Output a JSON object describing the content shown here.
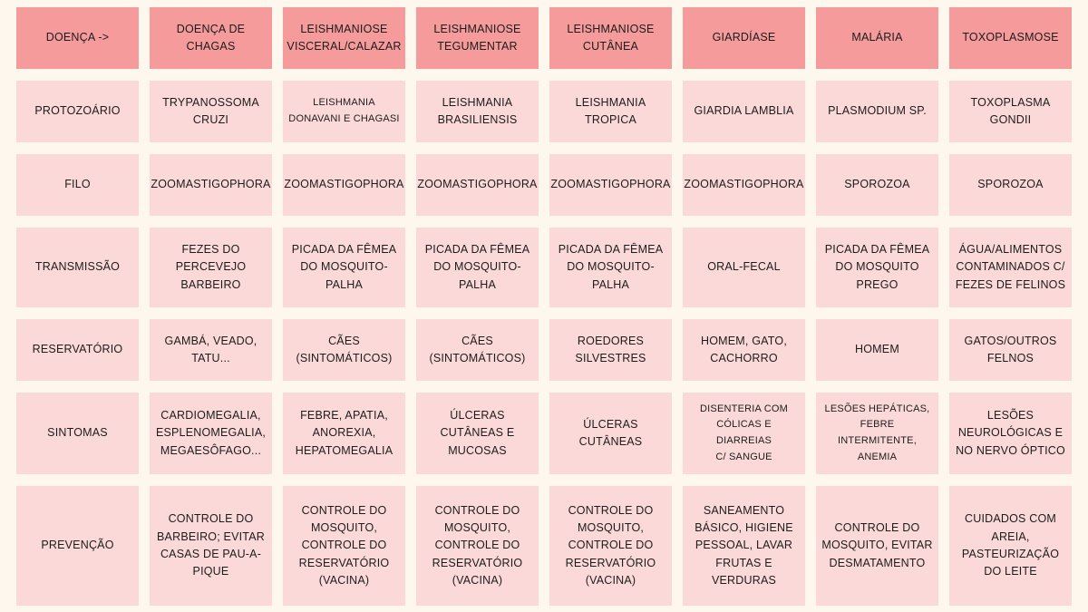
{
  "colors": {
    "background": "#fdf7ee",
    "header_cell": "#f59b9b",
    "body_cell": "#fcd9d9",
    "text": "#1c1c1c"
  },
  "header": {
    "corner": "Doença ->",
    "diseases": [
      "Doença de\nChagas",
      "Leishmaniose\nVisceral/Calazar",
      "Leishmaniose\nTegumentar",
      "Leishmaniose\nCutânea",
      "Giardíase",
      "Malária",
      "Toxoplasmose"
    ]
  },
  "rows": [
    {
      "label": "Protozoário",
      "cells": [
        "Trypanossoma\ncruzi",
        "Leishmania\ndonavani e chagasi",
        "Leishmania\nbrasiliensis",
        "Leishmania\ntropica",
        "Giardia lamblia",
        "Plasmodium sp.",
        "Toxoplasma\ngondii"
      ]
    },
    {
      "label": "Filo",
      "cells": [
        "Zoomastigophora",
        "Zoomastigophora",
        "Zoomastigophora",
        "Zoomastigophora",
        "Zoomastigophora",
        "Sporozoa",
        "Sporozoa"
      ]
    },
    {
      "label": "Transmissão",
      "cells": [
        "Fezes do\npercevejo\nbarbeiro",
        "Picada da fêmea\ndo mosquito-\npalha",
        "Picada da fêmea\ndo mosquito-\npalha",
        "Picada da fêmea\ndo mosquito-\npalha",
        "Oral-fecal",
        "Picada da fêmea\ndo mosquito\nprego",
        "Água/alimentos\ncontaminados c/\nfezes de felinos"
      ]
    },
    {
      "label": "Reservatório",
      "cells": [
        "Gambá, veado,\ntatu...",
        "Cães\n(sintomáticos)",
        "Cães\n(sintomáticos)",
        "Roedores\nsilvestres",
        "Homem, gato,\ncachorro",
        "Homem",
        "Gatos/outros\nfelnos"
      ]
    },
    {
      "label": "Sintomas",
      "cells": [
        "Cardiomegalia,\nesplenomegalia,\nmegaesôfago...",
        "Febre, apatia,\nanorexia,\nhepatomegalia",
        "Úlceras\ncutâneas e\nmucosas",
        "Úlceras\ncutâneas",
        "Disenteria com\ncólicas e diarreias\nc/ sangue",
        "Lesões hepáticas,\nfebre intermitente,\nanemia",
        "Lesões\nneurológicas e\nno nervo óptico"
      ]
    },
    {
      "label": "Prevenção",
      "cells": [
        "Controle do\nbarbeiro; evitar\ncasas de pau-a-\npique",
        "Controle do\nmosquito,\ncontrole do\nreservatório\n(vacina)",
        "Controle do\nmosquito,\ncontrole do\nreservatório\n(vacina)",
        "Controle do\nmosquito,\ncontrole do\nreservatório\n(vacina)",
        "Saneamento\nbásico, higiene\npessoal, lavar\nfrutas e\nverduras",
        "Controle do\nmosquito, evitar\ndesmatamento",
        "Cuidados com\nareia,\npasteurização\ndo leite"
      ]
    }
  ]
}
